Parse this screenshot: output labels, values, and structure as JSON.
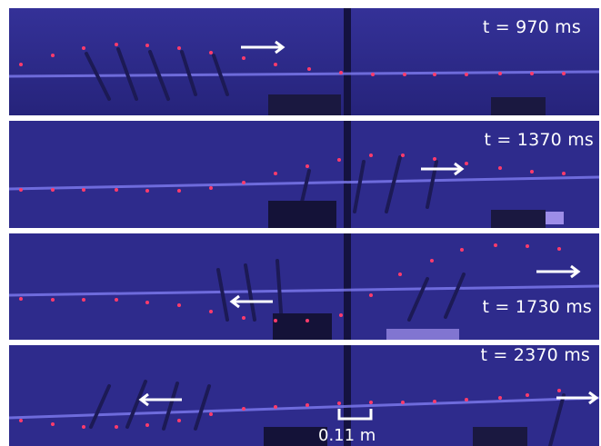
{
  "panels": [
    {
      "time_label": "t = 970 ms"
    },
    {
      "time_label": "t = 1370 ms"
    },
    {
      "time_label": "t = 1730 ms"
    },
    {
      "time_label": "t = 2370 ms"
    }
  ],
  "scale_bar": {
    "label": "0.11 m"
  },
  "colors": {
    "background": "#2e2b8c",
    "marker": "#ff3b6b",
    "rod": "#1c1a55",
    "string": "#7f7cf0",
    "label": "#ffffff"
  }
}
